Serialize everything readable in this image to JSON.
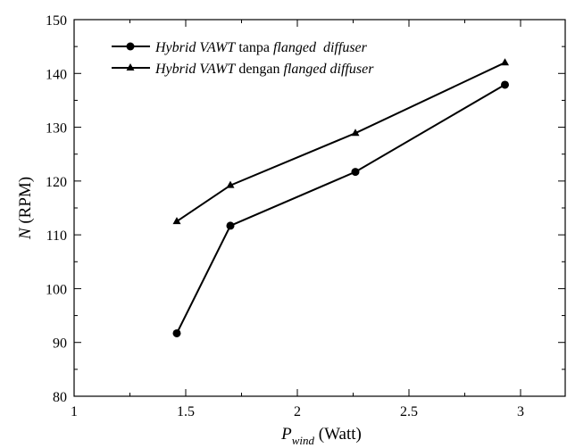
{
  "chart_data": {
    "type": "line",
    "title": "",
    "xlabel": {
      "main": "P",
      "sub": "wind",
      "unit": " (Watt)"
    },
    "ylabel": {
      "main": "N",
      "unit": " (RPM)"
    },
    "xlim": [
      1,
      3.2
    ],
    "ylim": [
      80,
      150
    ],
    "x_ticks": [
      "1",
      "1.5",
      "2",
      "2.5",
      "3"
    ],
    "y_ticks": [
      "80",
      "90",
      "100",
      "110",
      "120",
      "130",
      "140",
      "150"
    ],
    "grid": false,
    "legend_position": "top-left",
    "series": [
      {
        "marker": "circle",
        "legend": {
          "part1": "Hybrid VAWT",
          "part2": " tanpa ",
          "part3": "flanged",
          "part4": "  diffuser"
        },
        "x": [
          1.46,
          1.7,
          2.26,
          2.93
        ],
        "y": [
          91.7,
          111.7,
          121.7,
          137.9
        ]
      },
      {
        "marker": "triangle",
        "legend": {
          "part1": "Hybrid VAWT",
          "part2": " dengan ",
          "part3": "flanged diffuser",
          "part4": ""
        },
        "x": [
          1.46,
          1.7,
          2.26,
          2.93
        ],
        "y": [
          112.5,
          119.2,
          128.9,
          142.0
        ]
      }
    ]
  }
}
